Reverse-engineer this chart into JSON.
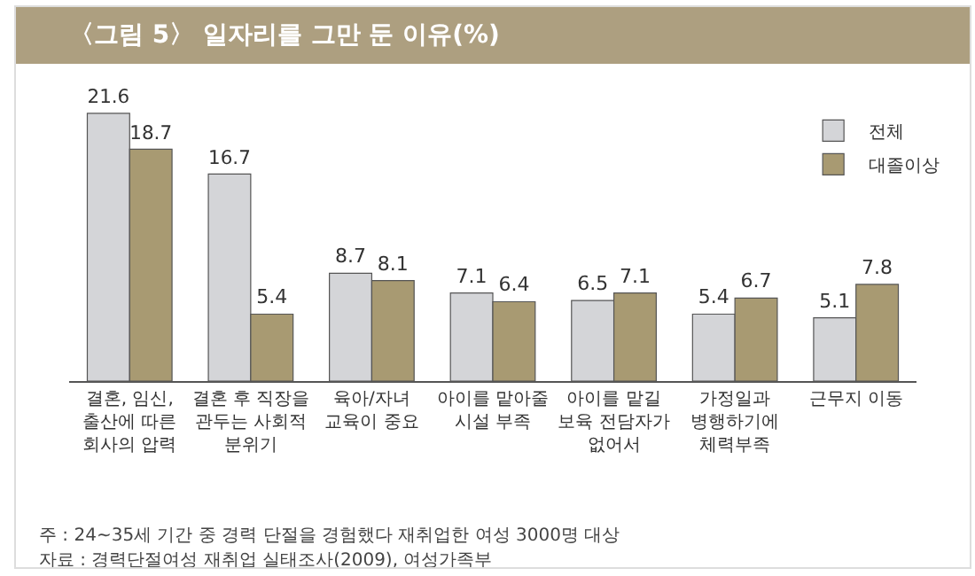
{
  "chart_data": {
    "type": "bar",
    "title": "〈그림 5〉 일자리를 그만 둔 이유(%)",
    "categories": [
      "결혼, 임신, 출산에 따른 회사의 압력",
      "결혼 후 직장을 관두는 사회적 분위기",
      "육아/자녀 교육이 중요",
      "아이를 맡아줄 시설 부족",
      "아이를 맡길 보육 전담자가 없어서",
      "가정일과 병행하기에 체력부족",
      "근무지 이동"
    ],
    "series": [
      {
        "name": "전체",
        "color": "#d4d5d8",
        "values": [
          21.6,
          16.7,
          8.7,
          7.1,
          6.5,
          5.4,
          5.1
        ]
      },
      {
        "name": "대졸이상",
        "color": "#a89a72",
        "values": [
          18.7,
          5.4,
          8.1,
          6.4,
          7.1,
          6.7,
          7.8
        ]
      }
    ],
    "tick_labels": "x",
    "data_labels": true,
    "legend": "top right",
    "annotations": [
      "주 : 24~35세 기간 중 경력 단절을 경험했다 재취업한 여성 3000명 대상",
      "자료 : 경력단절여성 재취업 실태조사(2009), 여성가족부"
    ]
  }
}
